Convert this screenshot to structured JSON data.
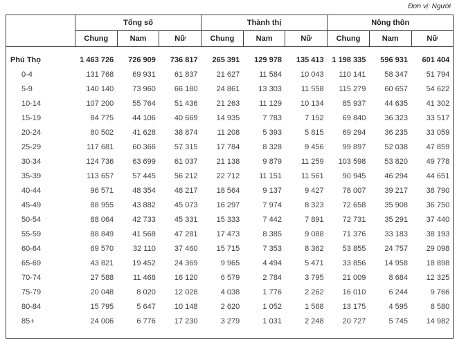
{
  "unit_note": "Đơn vị: Người",
  "table": {
    "col_groups": [
      {
        "label": "Tổng số"
      },
      {
        "label": "Thành thị"
      },
      {
        "label": "Nông thôn"
      }
    ],
    "sub_headers": [
      "Chung",
      "Nam",
      "Nữ",
      "Chung",
      "Nam",
      "Nữ",
      "Chung",
      "Nam",
      "Nữ"
    ],
    "rows": [
      {
        "label": "Phú Thọ",
        "bold": true,
        "values": [
          "1 463 726",
          "726 909",
          "736 817",
          "265 391",
          "129 978",
          "135 413",
          "1 198 335",
          "596 931",
          "601 404"
        ]
      },
      {
        "label": "0-4",
        "values": [
          "131 768",
          "69 931",
          "61 837",
          "21 627",
          "11 584",
          "10 043",
          "110 141",
          "58 347",
          "51 794"
        ]
      },
      {
        "label": "5-9",
        "values": [
          "140 140",
          "73 960",
          "66 180",
          "24 861",
          "13 303",
          "11 558",
          "115 279",
          "60 657",
          "54 622"
        ]
      },
      {
        "label": "10-14",
        "values": [
          "107 200",
          "55 764",
          "51 436",
          "21 263",
          "11 129",
          "10 134",
          "85 937",
          "44 635",
          "41 302"
        ]
      },
      {
        "label": "15-19",
        "values": [
          "84 775",
          "44 106",
          "40 669",
          "14 935",
          "7 783",
          "7 152",
          "69 840",
          "36 323",
          "33 517"
        ]
      },
      {
        "label": "20-24",
        "values": [
          "80 502",
          "41 628",
          "38 874",
          "11 208",
          "5 393",
          "5 815",
          "69 294",
          "36 235",
          "33 059"
        ]
      },
      {
        "label": "25-29",
        "values": [
          "117 681",
          "60 366",
          "57 315",
          "17 784",
          "8 328",
          "9 456",
          "99 897",
          "52 038",
          "47 859"
        ]
      },
      {
        "label": "30-34",
        "values": [
          "124 736",
          "63 699",
          "61 037",
          "21 138",
          "9 879",
          "11 259",
          "103 598",
          "53 820",
          "49 778"
        ]
      },
      {
        "label": "35-39",
        "values": [
          "113 657",
          "57 445",
          "56 212",
          "22 712",
          "11 151",
          "11 561",
          "90 945",
          "46 294",
          "44 651"
        ]
      },
      {
        "label": "40-44",
        "values": [
          "96 571",
          "48 354",
          "48 217",
          "18 564",
          "9 137",
          "9 427",
          "78 007",
          "39 217",
          "38 790"
        ]
      },
      {
        "label": "45-49",
        "values": [
          "88 955",
          "43 882",
          "45 073",
          "16 297",
          "7 974",
          "8 323",
          "72 658",
          "35 908",
          "36 750"
        ]
      },
      {
        "label": "50-54",
        "values": [
          "88 064",
          "42 733",
          "45 331",
          "15 333",
          "7 442",
          "7 891",
          "72 731",
          "35 291",
          "37 440"
        ]
      },
      {
        "label": "55-59",
        "values": [
          "88 849",
          "41 568",
          "47 281",
          "17 473",
          "8 385",
          "9 088",
          "71 376",
          "33 183",
          "38 193"
        ]
      },
      {
        "label": "60-64",
        "values": [
          "69 570",
          "32 110",
          "37 460",
          "15 715",
          "7 353",
          "8 362",
          "53 855",
          "24 757",
          "29 098"
        ]
      },
      {
        "label": "65-69",
        "values": [
          "43 821",
          "19 452",
          "24 369",
          "9 965",
          "4 494",
          "5 471",
          "33 856",
          "14 958",
          "18 898"
        ]
      },
      {
        "label": "70-74",
        "values": [
          "27 588",
          "11 468",
          "16 120",
          "6 579",
          "2 784",
          "3 795",
          "21 009",
          "8 684",
          "12 325"
        ]
      },
      {
        "label": "75-79",
        "values": [
          "20 048",
          "8 020",
          "12 028",
          "4 038",
          "1 776",
          "2 262",
          "16 010",
          "6 244",
          "9 766"
        ]
      },
      {
        "label": "80-84",
        "values": [
          "15 795",
          "5 647",
          "10 148",
          "2 620",
          "1 052",
          "1 568",
          "13 175",
          "4 595",
          "8 580"
        ]
      },
      {
        "label": "85+",
        "values": [
          "24 006",
          "6 776",
          "17 230",
          "3 279",
          "1 031",
          "2 248",
          "20 727",
          "5 745",
          "14 982"
        ]
      }
    ]
  }
}
